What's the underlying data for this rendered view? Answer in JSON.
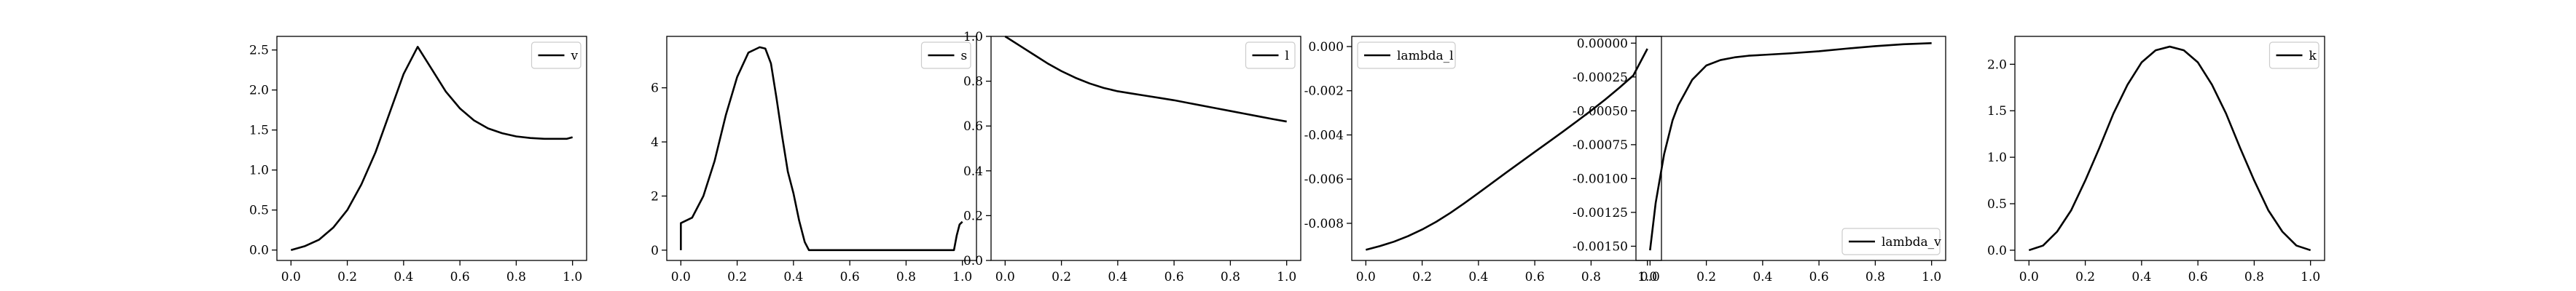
{
  "chart_data": [
    {
      "type": "line",
      "legend": "v",
      "legend_loc": "upper right",
      "xlim": [
        -0.05,
        1.05
      ],
      "ylim": [
        -0.13,
        2.67
      ],
      "xticks": [
        "0.0",
        "0.2",
        "0.4",
        "0.6",
        "0.8",
        "1.0"
      ],
      "yticks": [
        "0.0",
        "0.5",
        "1.0",
        "1.5",
        "2.0",
        "2.5"
      ],
      "x": [
        0,
        0.05,
        0.1,
        0.15,
        0.2,
        0.25,
        0.3,
        0.35,
        0.4,
        0.45,
        0.5,
        0.55,
        0.6,
        0.65,
        0.7,
        0.75,
        0.8,
        0.85,
        0.9,
        0.95,
        0.98,
        1.0
      ],
      "y": [
        0.0,
        0.05,
        0.13,
        0.28,
        0.5,
        0.82,
        1.22,
        1.71,
        2.2,
        2.54,
        2.26,
        1.98,
        1.77,
        1.62,
        1.52,
        1.46,
        1.42,
        1.4,
        1.39,
        1.39,
        1.39,
        1.41
      ]
    },
    {
      "type": "line",
      "legend": "s",
      "legend_loc": "upper right",
      "xlim": [
        -0.05,
        1.05
      ],
      "ylim": [
        -0.38,
        7.9
      ],
      "xticks": [
        "0.0",
        "0.2",
        "0.4",
        "0.6",
        "0.8",
        "1.0"
      ],
      "yticks": [
        "0",
        "2",
        "4",
        "6"
      ],
      "x": [
        0.0,
        0.0,
        0.04,
        0.08,
        0.12,
        0.16,
        0.2,
        0.24,
        0.28,
        0.3,
        0.32,
        0.34,
        0.36,
        0.38,
        0.4,
        0.42,
        0.44,
        0.455,
        0.46,
        0.55,
        0.7,
        0.85,
        0.97,
        0.98,
        0.99,
        1.0
      ],
      "y": [
        0,
        1.0,
        1.2,
        2.0,
        3.3,
        5.0,
        6.4,
        7.3,
        7.5,
        7.45,
        6.9,
        5.6,
        4.2,
        2.9,
        2.1,
        1.1,
        0.3,
        0.0,
        0.0,
        0.0,
        0.0,
        0.0,
        0.0,
        0.55,
        0.95,
        1.05
      ]
    },
    {
      "type": "line",
      "legend": "l",
      "legend_loc": "upper right",
      "xlim": [
        -0.05,
        1.05
      ],
      "ylim": [
        0.0,
        1.0
      ],
      "xticks": [
        "0.0",
        "0.2",
        "0.4",
        "0.6",
        "0.8",
        "1.0"
      ],
      "yticks": [
        "0.0",
        "0.2",
        "0.4",
        "0.6",
        "0.8",
        "1.0"
      ],
      "x": [
        0,
        0.05,
        0.1,
        0.15,
        0.2,
        0.25,
        0.3,
        0.35,
        0.4,
        0.45,
        0.5,
        0.55,
        0.6,
        0.65,
        0.7,
        0.75,
        0.8,
        0.85,
        0.9,
        0.95,
        1.0
      ],
      "y": [
        1.0,
        0.96,
        0.92,
        0.88,
        0.845,
        0.815,
        0.79,
        0.77,
        0.755,
        0.745,
        0.735,
        0.725,
        0.715,
        0.703,
        0.691,
        0.679,
        0.667,
        0.655,
        0.643,
        0.631,
        0.62
      ]
    },
    {
      "type": "line",
      "legend": "lambda_l",
      "legend_loc": "upper left",
      "xlim": [
        -0.05,
        1.05
      ],
      "ylim": [
        -0.00968,
        0.00046
      ],
      "xticks": [
        "0.0",
        "0.2",
        "0.4",
        "0.6",
        "0.8",
        "1.0"
      ],
      "yticks": [
        "0.000",
        "-0.002",
        "-0.004",
        "-0.006",
        "-0.008"
      ],
      "x": [
        0,
        0.05,
        0.1,
        0.15,
        0.2,
        0.25,
        0.3,
        0.35,
        0.4,
        0.45,
        0.5,
        0.55,
        0.6,
        0.65,
        0.7,
        0.75,
        0.8,
        0.85,
        0.9,
        0.95,
        1.0
      ],
      "y": [
        -0.0092,
        -0.00903,
        -0.00883,
        -0.00858,
        -0.00828,
        -0.00793,
        -0.00753,
        -0.00709,
        -0.00663,
        -0.00616,
        -0.00569,
        -0.00523,
        -0.00477,
        -0.00431,
        -0.00385,
        -0.00338,
        -0.0029,
        -0.0024,
        -0.00187,
        -0.00131,
        -0.0001
      ]
    },
    {
      "type": "line",
      "legend": "lambda_v",
      "legend_loc": "lower right",
      "xlim": [
        -0.05,
        1.05
      ],
      "ylim": [
        -0.001605,
        5e-05
      ],
      "xticks": [
        "0.0",
        "0.2",
        "0.4",
        "0.6",
        "0.8",
        "1.0"
      ],
      "yticks": [
        "0.00000",
        "-0.00025",
        "-0.00050",
        "-0.00075",
        "-0.00100",
        "-0.00125",
        "-0.00150"
      ],
      "x": [
        0,
        0.02,
        0.05,
        0.08,
        0.1,
        0.15,
        0.2,
        0.25,
        0.3,
        0.35,
        0.4,
        0.5,
        0.6,
        0.7,
        0.8,
        0.9,
        1.0
      ],
      "y": [
        -0.00153,
        -0.00118,
        -0.00082,
        -0.00057,
        -0.00046,
        -0.00027,
        -0.000165,
        -0.000125,
        -0.000105,
        -9.3e-05,
        -8.7e-05,
        -7.5e-05,
        -6e-05,
        -4e-05,
        -2.2e-05,
        -8e-06,
        0.0
      ]
    },
    {
      "type": "line",
      "legend": "k",
      "legend_loc": "upper right",
      "xlim": [
        -0.05,
        1.05
      ],
      "ylim": [
        -0.11,
        2.3
      ],
      "xticks": [
        "0.0",
        "0.2",
        "0.4",
        "0.6",
        "0.8",
        "1.0"
      ],
      "yticks": [
        "0.0",
        "0.5",
        "1.0",
        "1.5",
        "2.0"
      ],
      "x": [
        0,
        0.05,
        0.1,
        0.15,
        0.2,
        0.25,
        0.3,
        0.35,
        0.4,
        0.45,
        0.5,
        0.55,
        0.6,
        0.65,
        0.7,
        0.75,
        0.8,
        0.85,
        0.9,
        0.95,
        1.0
      ],
      "y": [
        0.0,
        0.05,
        0.2,
        0.43,
        0.75,
        1.1,
        1.47,
        1.78,
        2.02,
        2.15,
        2.19,
        2.15,
        2.02,
        1.78,
        1.47,
        1.1,
        0.75,
        0.43,
        0.2,
        0.05,
        0.0
      ]
    }
  ]
}
